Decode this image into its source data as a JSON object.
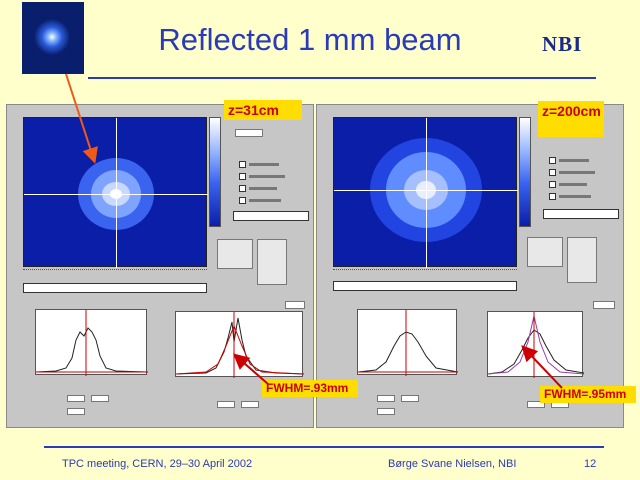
{
  "slide": {
    "title": "Reflected 1 mm beam",
    "logo_text": "NBI",
    "footer_left": "TPC meeting, CERN, 29–30 April 2002",
    "footer_center": "Børge Svane Nielsen, NBI",
    "footer_right": "12"
  },
  "callouts": {
    "z_left": "z=31cm",
    "z_right": "z=200cm",
    "fwhm_left": "FWHM=.93mm",
    "fwhm_right": "FWHM=.95mm"
  },
  "colors": {
    "background": "#ffffcc",
    "title": "#2a3ab8",
    "callout_bg": "#ffdd00",
    "callout_text": "#cc0000",
    "beam_field": "#0b1ea8",
    "arrow": "#ee5a1a"
  },
  "icons": {
    "beam_thumbnail": "beam-photo-icon",
    "logo": "nbi-logo-icon",
    "arrow": "arrow-icon"
  }
}
